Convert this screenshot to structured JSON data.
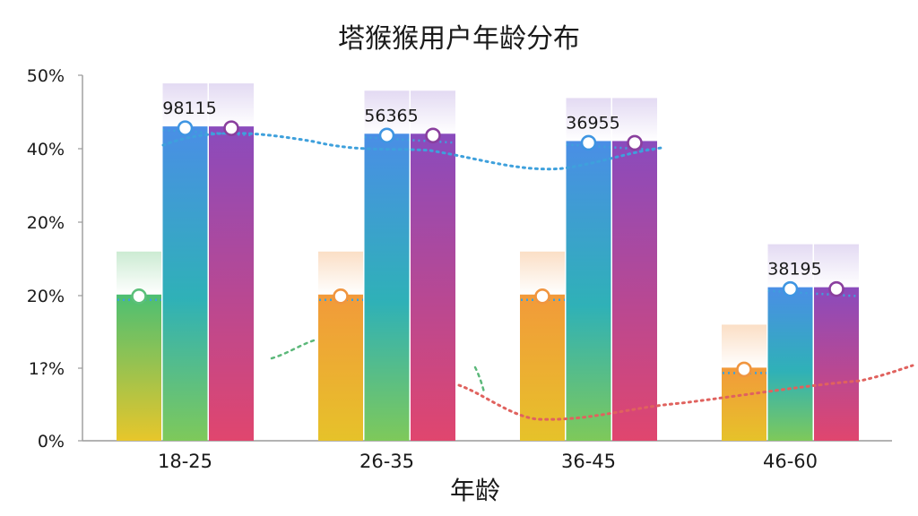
{
  "chart_data": {
    "type": "bar",
    "title": "塔猴猴用户年龄分布",
    "xlabel": "年龄",
    "ylabel": "",
    "categories": [
      "18-25",
      "26-35",
      "36-45",
      "46-60"
    ],
    "y_tick_labels": [
      "50%",
      "40%",
      "20%",
      "20%",
      "1?%",
      "0%"
    ],
    "series": [
      {
        "values": [
          20,
          20,
          20,
          10
        ]
      },
      {
        "values": [
          43,
          42,
          41,
          21
        ]
      },
      {
        "values": [
          43,
          42,
          41,
          21
        ]
      }
    ],
    "data_labels": [
      "98115",
      "56365",
      "36955",
      "38195"
    ],
    "legend": "none",
    "grid": false,
    "colors": {
      "series1": [
        "#5fc36a",
        "#f08a3a"
      ],
      "series2": [
        "#2fb3a6",
        "#4f86e8"
      ],
      "series3": [
        "#8a4bbd",
        "#d9467a"
      ],
      "upper_line": "#3ea0dc",
      "lower_line": "#e0625e"
    }
  }
}
